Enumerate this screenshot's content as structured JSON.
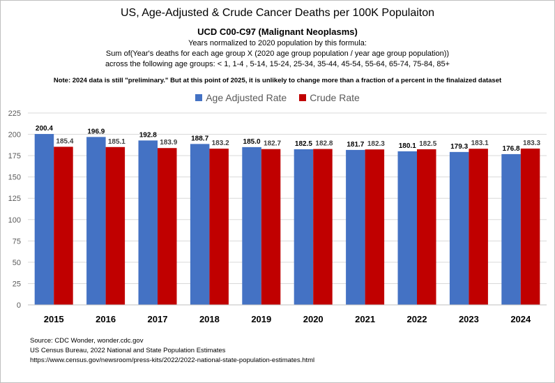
{
  "title": "US, Age-Adjusted & Crude Cancer Deaths per 100K Populaiton",
  "subtitle": "UCD C00-C97 (Malignant Neoplasms)",
  "description": [
    "Years normalized to 2020 population by this formula:",
    "Sum of(Year's deaths for each age group X (2020 age group population / year age group population))",
    "across the following age groups: < 1, 1-4 , 5-14, 15-24, 25-34, 35-44, 45-54, 55-64, 65-74, 75-84, 85+"
  ],
  "note": "Note:  2024 data is still \"preliminary.\" But at this point of 2025, it is unlikely to change more than a fraction of a percent in the finalaized dataset",
  "sources": [
    "Source: CDC Wonder, wonder.cdc.gov",
    "US Census Bureau, 2022 National and State Population Estimates",
    "https://www.census.gov/newsroom/press-kits/2022/2022-national-state-population-estimates.html"
  ],
  "colors": {
    "age_adjusted": "#4472c4",
    "crude": "#c00000",
    "gridline": "#d9d9d9",
    "axis_text": "#595959"
  },
  "chart_data": {
    "type": "bar",
    "title": "US, Age-Adjusted & Crude Cancer Deaths per 100K Populaiton",
    "xlabel": "",
    "ylabel": "",
    "categories": [
      "2015",
      "2016",
      "2017",
      "2018",
      "2019",
      "2020",
      "2021",
      "2022",
      "2023",
      "2024"
    ],
    "series": [
      {
        "name": "Age Adjusted Rate",
        "values": [
          200.4,
          196.9,
          192.8,
          188.7,
          185.0,
          182.5,
          181.7,
          180.1,
          179.3,
          176.8
        ]
      },
      {
        "name": "Crude Rate",
        "values": [
          185.4,
          185.1,
          183.9,
          183.2,
          182.7,
          182.8,
          182.3,
          182.5,
          183.1,
          183.3
        ]
      }
    ],
    "ylim": [
      0,
      225
    ],
    "yticks": [
      0,
      25,
      50,
      75,
      100,
      125,
      150,
      175,
      200,
      225
    ],
    "grid": true,
    "legend_position": "top",
    "data_labels": true
  }
}
